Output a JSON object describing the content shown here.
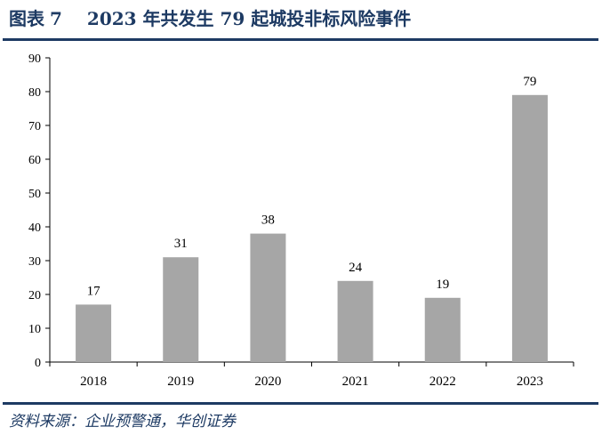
{
  "title": {
    "prefix": "图表",
    "number": "7",
    "text": "2023 年共发生 79 起城投非标风险事件"
  },
  "source": "资料来源：企业预警通，华创证券",
  "chart_data": {
    "type": "bar",
    "categories": [
      "2018",
      "2019",
      "2020",
      "2021",
      "2022",
      "2023"
    ],
    "values": [
      17,
      31,
      38,
      24,
      19,
      79
    ],
    "data_labels": [
      "17",
      "31",
      "38",
      "24",
      "19",
      "79"
    ],
    "ylim": [
      0,
      90
    ],
    "yticks": [
      0,
      10,
      20,
      30,
      40,
      50,
      60,
      70,
      80,
      90
    ],
    "xlabel": "",
    "ylabel": "",
    "grid": false,
    "legend": "none",
    "bar_color": "#a6a6a6"
  },
  "colors": {
    "brand": "#1d3a63",
    "bar": "#a6a6a6",
    "axis": "#000000"
  }
}
